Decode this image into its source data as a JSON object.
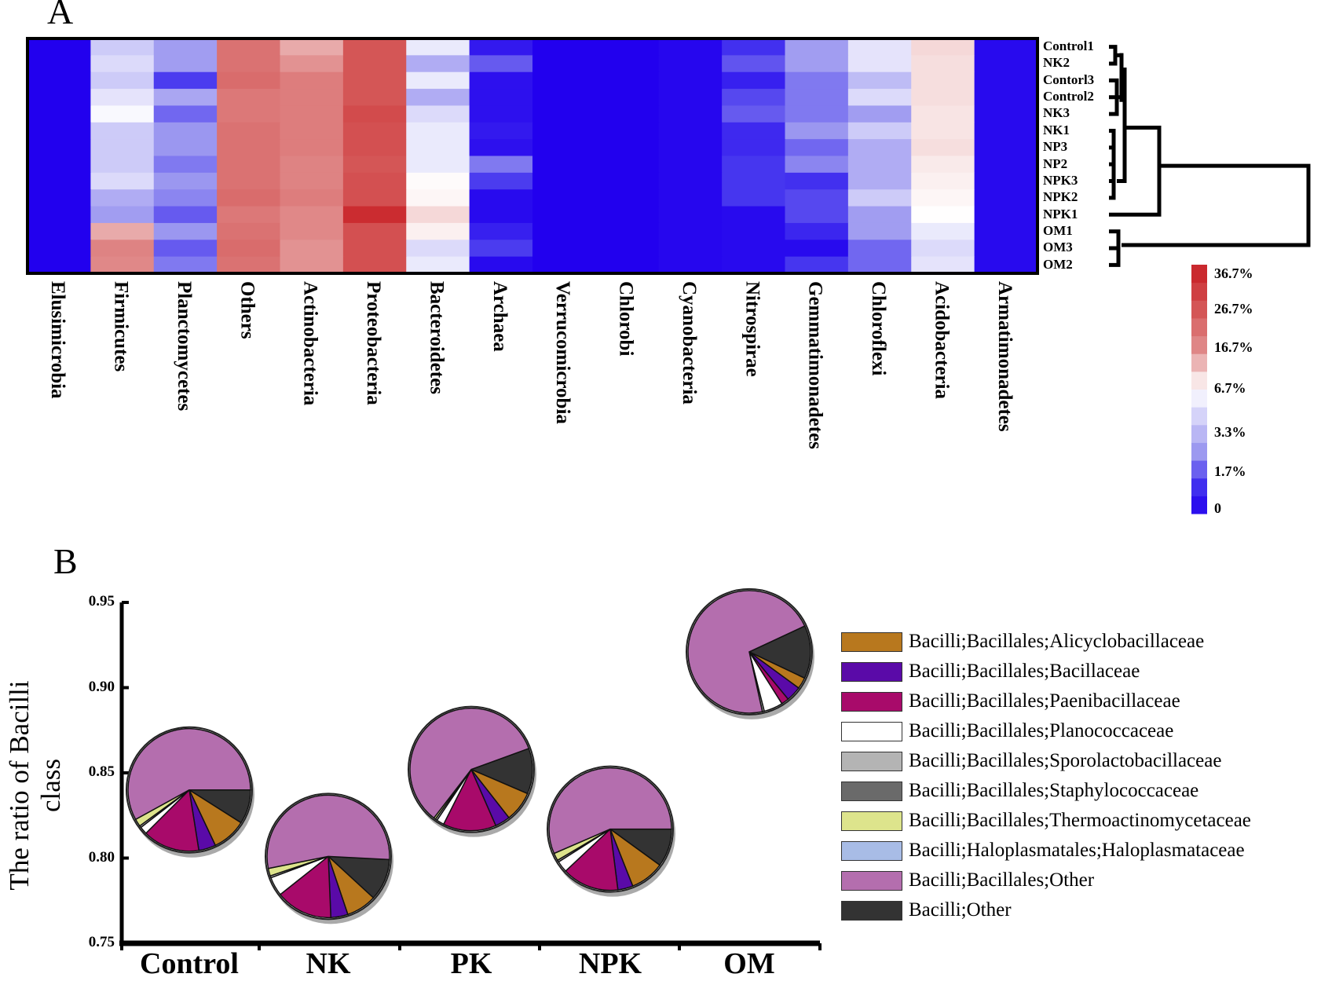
{
  "panel_a_label": "A",
  "panel_b_label": "B",
  "chart_data": [
    {
      "type": "heatmap",
      "rows": [
        "Control1",
        "NK2",
        "Contorl3",
        "Control2",
        "NK3",
        "NK1",
        "NP3",
        "NP2",
        "NPK3",
        "NPK2",
        "NPK1",
        "OM1",
        "OM3",
        "OM2"
      ],
      "columns": [
        "Elusimicrobia",
        "Firmicutes",
        "Planctomycetes",
        "Others",
        "Actinobacteria",
        "Proteobacteria",
        "Bacteroidetes",
        "Archaea",
        "Verrucomicrobia",
        "Chlorobi",
        "Cyanobacteria",
        "Nitrospirae",
        "Gemmatimonadetes",
        "Chloroflexi",
        "Acidobacteria",
        "Armatimonadetes"
      ],
      "values_percent": [
        [
          0,
          5,
          3.5,
          21,
          14,
          26,
          6,
          0.8,
          0,
          0,
          0.2,
          1.5,
          3.5,
          5.8,
          10,
          0.3
        ],
        [
          0,
          5.5,
          3.5,
          21,
          16,
          26,
          4,
          2.3,
          0,
          0,
          0.2,
          2.2,
          3.5,
          5.8,
          9.5,
          0.3
        ],
        [
          0,
          5,
          1.8,
          22,
          19,
          26,
          6,
          0.5,
          0,
          0,
          0.2,
          1,
          2.8,
          4.5,
          9.5,
          0.3
        ],
        [
          0,
          5.8,
          3.8,
          20,
          19,
          26,
          4,
          0.5,
          0,
          0,
          0.2,
          2,
          2.8,
          5.5,
          9.5,
          0.3
        ],
        [
          0,
          6.5,
          2.5,
          20,
          19,
          28,
          5.5,
          0.5,
          0,
          0,
          0.2,
          2.3,
          2.8,
          3.5,
          9,
          0.3
        ],
        [
          0,
          5,
          3.3,
          21,
          19,
          27,
          6,
          0.8,
          0,
          0,
          0.2,
          1.3,
          3.3,
          5,
          9,
          0.3
        ],
        [
          0,
          5,
          3.3,
          21,
          19,
          27,
          6,
          0.5,
          0,
          0,
          0.2,
          1.3,
          2.5,
          4,
          9.5,
          0.3
        ],
        [
          0,
          5,
          2.8,
          21,
          18,
          26,
          6,
          2.8,
          0,
          0,
          0.2,
          1.7,
          3,
          4,
          8.5,
          0.3
        ],
        [
          0,
          5.5,
          3.3,
          21,
          18,
          27,
          7,
          1.8,
          0,
          0,
          0.2,
          1.7,
          1.5,
          4,
          8,
          0.3
        ],
        [
          0,
          4,
          3,
          22,
          19,
          27,
          7.5,
          0.3,
          0,
          0,
          0.2,
          1.7,
          2,
          5,
          7.5,
          0.3
        ],
        [
          0,
          3.5,
          2.3,
          20,
          17,
          34,
          10,
          0.3,
          0,
          0,
          0.2,
          0.3,
          2,
          3.5,
          6.8,
          0.3
        ],
        [
          0,
          14,
          3.3,
          21,
          17,
          27,
          8,
          1,
          0,
          0,
          0.2,
          0.3,
          1.2,
          3.5,
          6,
          0.3
        ],
        [
          0,
          18,
          2.3,
          22,
          16,
          27,
          5.5,
          1.8,
          0,
          0,
          0.2,
          0.3,
          0.3,
          2.5,
          5.5,
          0.3
        ],
        [
          0,
          17,
          2.8,
          21,
          16,
          27,
          6,
          0.3,
          0,
          0,
          0.2,
          0.3,
          1.7,
          2.5,
          5.8,
          0.3
        ]
      ],
      "colorbar": {
        "tick_labels": [
          "36.7%",
          "26.7%",
          "16.7%",
          "6.7%",
          "3.3%",
          "1.7%",
          "0"
        ],
        "stops": [
          {
            "value": 0,
            "color": "#2200ee"
          },
          {
            "value": 1.7,
            "color": "#4636ef"
          },
          {
            "value": 3.3,
            "color": "#9b97f0"
          },
          {
            "value": 6.7,
            "color": "#ffffff"
          },
          {
            "value": 16.7,
            "color": "#e08a8a"
          },
          {
            "value": 26.7,
            "color": "#d35252"
          },
          {
            "value": 36.7,
            "color": "#c81e24"
          }
        ]
      },
      "dendrogram": "right"
    },
    {
      "type": "scatter-pie",
      "ylabel": "The ratio of Bacilli class",
      "ylim": [
        0.75,
        0.95
      ],
      "yticks": [
        "0.95",
        "0.90",
        "0.85",
        "0.80",
        "0.75"
      ],
      "categories": [
        "Control",
        "NK",
        "PK",
        "NPK",
        "OM"
      ],
      "y": [
        0.84,
        0.801,
        0.852,
        0.817,
        0.921
      ],
      "legend_position": "right",
      "legend": [
        {
          "name": "Bacilli;Bacillales;Alicyclobacillaceae",
          "color": "#b8781e"
        },
        {
          "name": "Bacilli;Bacillales;Bacillaceae",
          "color": "#5a0aa8"
        },
        {
          "name": "Bacilli;Bacillales;Paenibacillaceae",
          "color": "#a80a6a"
        },
        {
          "name": "Bacilli;Bacillales;Planococcaceae",
          "color": "#ffffff"
        },
        {
          "name": "Bacilli;Bacillales;Sporolactobacillaceae",
          "color": "#b4b4b4"
        },
        {
          "name": "Bacilli;Bacillales;Staphylococcaceae",
          "color": "#6a6a6a"
        },
        {
          "name": "Bacilli;Bacillales;Thermoactinomycetaceae",
          "color": "#dde48c"
        },
        {
          "name": "Bacilli;Haloplasmatales;Haloplasmataceae",
          "color": "#a8bce6"
        },
        {
          "name": "Bacilli;Bacillales;Other",
          "color": "#b46eae"
        },
        {
          "name": "Bacilli;Other",
          "color": "#333333"
        }
      ],
      "pie_order": [
        "Bacilli;Other",
        "Bacilli;Bacillales;Alicyclobacillaceae",
        "Bacilli;Bacillales;Bacillaceae",
        "Bacilli;Bacillales;Paenibacillaceae",
        "Bacilli;Bacillales;Planococcaceae",
        "Bacilli;Bacillales;Sporolactobacillaceae",
        "Bacilli;Bacillales;Thermoactinomycetaceae",
        "Bacilli;Haloplasmatales;Haloplasmataceae",
        "Bacilli;Bacillales;Other"
      ],
      "pie_fractions": [
        [
          0.09,
          0.09,
          0.045,
          0.15,
          0.02,
          0.005,
          0.02,
          0,
          0.58
        ],
        [
          0.11,
          0.08,
          0.045,
          0.15,
          0.05,
          0.005,
          0.02,
          0,
          0.54
        ],
        [
          0.12,
          0.08,
          0.04,
          0.14,
          0.02,
          0.005,
          0.005,
          0,
          0.59
        ],
        [
          0.1,
          0.09,
          0.04,
          0.15,
          0.03,
          0.005,
          0.02,
          0,
          0.565
        ],
        [
          0.14,
          0.03,
          0.04,
          0.02,
          0.05,
          0.005,
          0,
          0,
          0.715
        ]
      ]
    }
  ]
}
